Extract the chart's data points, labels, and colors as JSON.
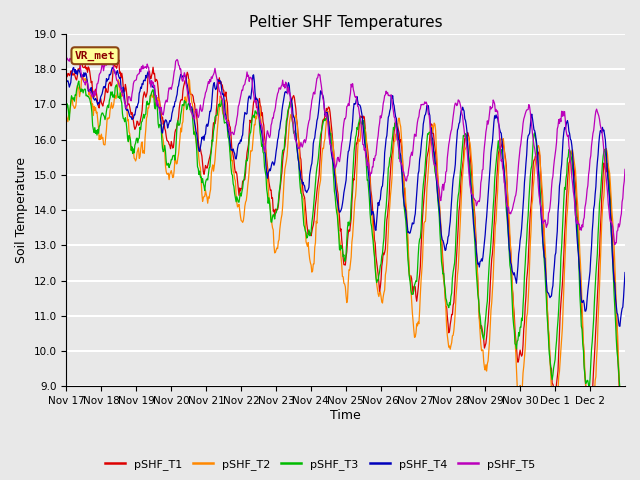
{
  "title": "Peltier SHF Temperatures",
  "xlabel": "Time",
  "ylabel": "Soil Temperature",
  "ylim": [
    9.0,
    19.0
  ],
  "yticks": [
    9.0,
    10.0,
    11.0,
    12.0,
    13.0,
    14.0,
    15.0,
    16.0,
    17.0,
    18.0,
    19.0
  ],
  "bg_color": "#e8e8e8",
  "grid_color": "white",
  "series": [
    {
      "label": "pSHF_T1",
      "color": "#dd0000"
    },
    {
      "label": "pSHF_T2",
      "color": "#ff8800"
    },
    {
      "label": "pSHF_T3",
      "color": "#00bb00"
    },
    {
      "label": "pSHF_T4",
      "color": "#0000bb"
    },
    {
      "label": "pSHF_T5",
      "color": "#bb00bb"
    }
  ],
  "annotation_text": "VR_met",
  "annotation_color": "#8B0000",
  "annotation_bg": "#ffff99",
  "annotation_border": "#8B4513",
  "n_days": 16,
  "points_per_day": 48,
  "tick_labels": [
    "Nov 17",
    "Nov 18",
    "Nov 19",
    "Nov 20",
    "Nov 21",
    "Nov 22",
    "Nov 23",
    "Nov 24",
    "Nov 25",
    "Nov 26",
    "Nov 27",
    "Nov 28",
    "Nov 29",
    "Nov 30",
    "Dec 1",
    "Dec 2"
  ],
  "title_fontsize": 11,
  "label_fontsize": 9,
  "tick_fontsize": 7.5,
  "linewidth": 0.9
}
